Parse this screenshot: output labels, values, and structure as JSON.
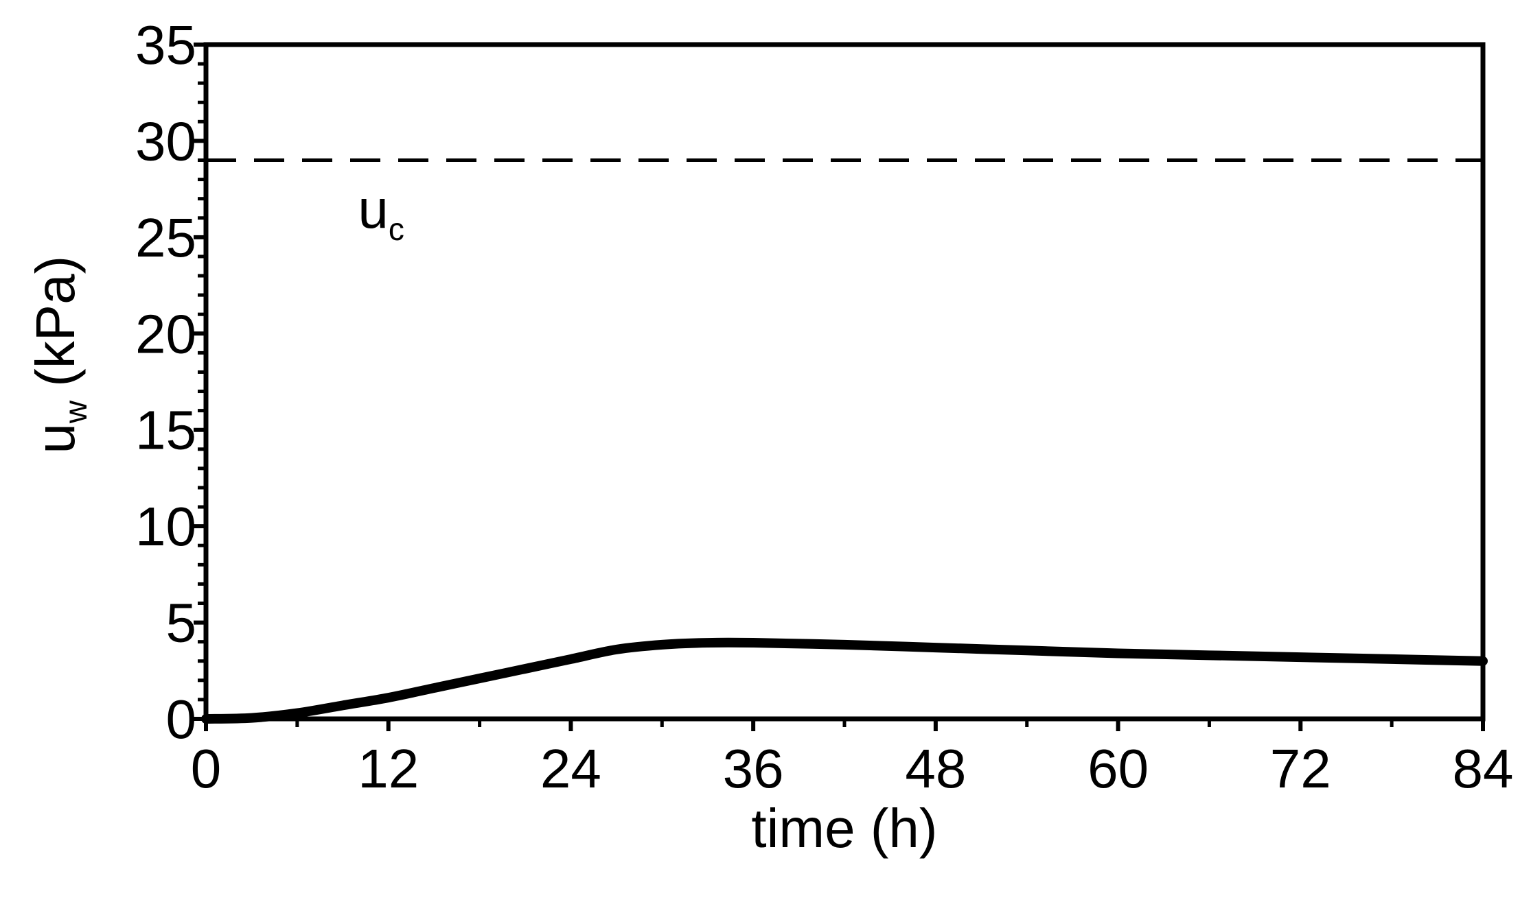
{
  "chart_data": {
    "type": "line",
    "title": "",
    "xlabel": "time (h)",
    "ylabel": {
      "main": "u",
      "sub": "w",
      "unit": "(kPa)"
    },
    "xlim": [
      0,
      84
    ],
    "ylim": [
      0,
      35
    ],
    "xticks": [
      0,
      12,
      24,
      36,
      48,
      60,
      72,
      84
    ],
    "yticks": [
      0,
      5,
      10,
      15,
      20,
      25,
      30,
      35
    ],
    "x_minor_step": 6,
    "y_minor_step": 1,
    "grid": false,
    "legend": "none",
    "series": [
      {
        "name": "",
        "color": "#000000",
        "style": "solid",
        "x": [
          0,
          3,
          6,
          9,
          12,
          15,
          18,
          21,
          24,
          27,
          30,
          33,
          36,
          42,
          48,
          54,
          60,
          66,
          72,
          78,
          84
        ],
        "y": [
          0.0,
          0.05,
          0.3,
          0.7,
          1.1,
          1.6,
          2.1,
          2.6,
          3.1,
          3.6,
          3.85,
          3.95,
          3.95,
          3.85,
          3.7,
          3.55,
          3.4,
          3.3,
          3.2,
          3.1,
          3.0
        ]
      }
    ],
    "reference_lines": [
      {
        "y": 29,
        "style": "dashed",
        "color": "#000000",
        "label": {
          "main": "u",
          "sub": "c"
        },
        "label_x": 10,
        "label_y": 25.5
      }
    ]
  }
}
